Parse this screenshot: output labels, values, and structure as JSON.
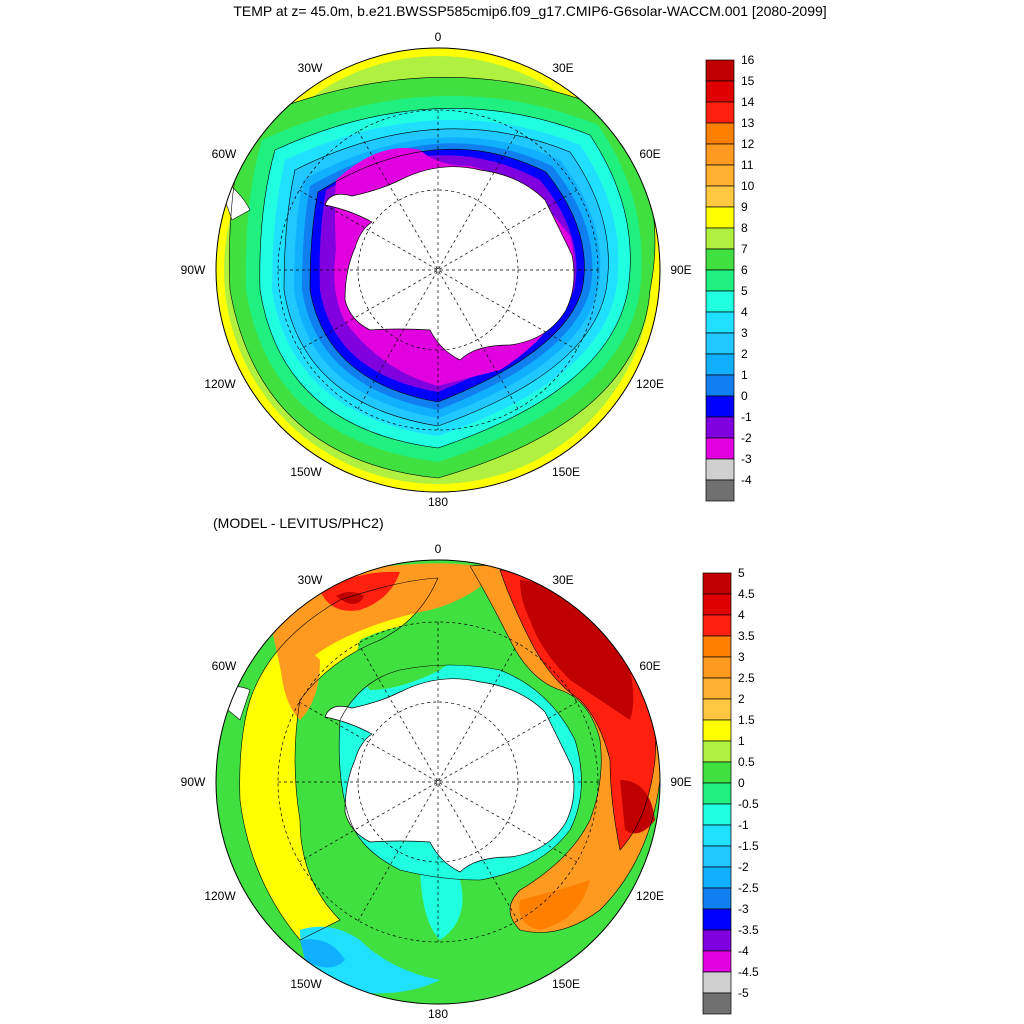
{
  "title": "TEMP at z=  45.0m, b.e21.BWSSP585cmip6.f09_g17.CMIP6-G6solar-WACCM.001 [2080-2099]",
  "subtitle": "(MODEL - LEVITUS/PHC2)",
  "longitude_labels": [
    "0",
    "30E",
    "60E",
    "90E",
    "120E",
    "150E",
    "180",
    "150W",
    "120W",
    "90W",
    "60W",
    "30W"
  ],
  "top_map": {
    "name": "temperature",
    "colorbar": {
      "labels": [
        "16",
        "15",
        "14",
        "13",
        "12",
        "11",
        "10",
        "9",
        "8",
        "7",
        "6",
        "5",
        "4",
        "3",
        "2",
        "1",
        "0",
        "-1",
        "-2",
        "-3",
        "-4"
      ],
      "colors": [
        "#c00000",
        "#e00000",
        "#ff2010",
        "#ff8000",
        "#ff9a20",
        "#ffb030",
        "#ffc840",
        "#ffff00",
        "#b0f040",
        "#40e040",
        "#20f080",
        "#20ffe0",
        "#20e0ff",
        "#20c8ff",
        "#10b0ff",
        "#1080f0",
        "#0000ff",
        "#8000e0",
        "#e000e0",
        "#d0d0d0",
        "#707070"
      ]
    }
  },
  "bottom_map": {
    "name": "difference",
    "colorbar": {
      "labels": [
        "5",
        "4.5",
        "4",
        "3.5",
        "3",
        "2.5",
        "2",
        "1.5",
        "1",
        "0.5",
        "0",
        "-0.5",
        "-1",
        "-1.5",
        "-2",
        "-2.5",
        "-3",
        "-3.5",
        "-4",
        "-4.5",
        "-5"
      ],
      "colors": [
        "#c00000",
        "#e00000",
        "#ff2010",
        "#ff8000",
        "#ff9a20",
        "#ffb030",
        "#ffc840",
        "#ffff00",
        "#b0f040",
        "#40e040",
        "#20f080",
        "#20ffe0",
        "#20e0ff",
        "#20c8ff",
        "#10b0ff",
        "#1080f0",
        "#0000ff",
        "#8000e0",
        "#e000e0",
        "#d0d0d0",
        "#707070"
      ]
    }
  }
}
